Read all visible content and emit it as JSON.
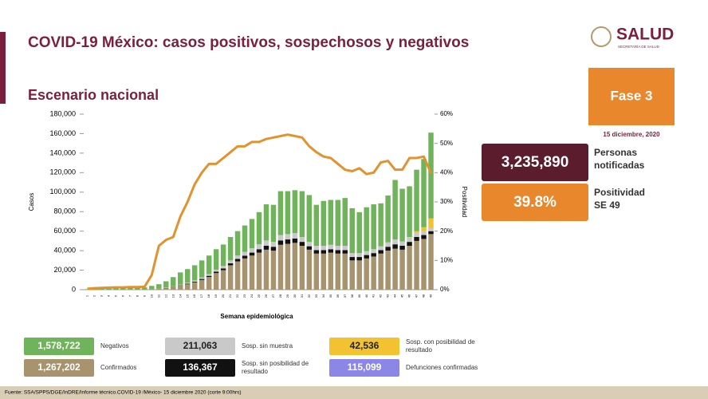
{
  "header": {
    "title": "COVID-19 México: casos positivos, sospechosos y negativos",
    "subtitle": "Escenario nacional",
    "logo": "SALUD",
    "logo_sub": "SECRETARÍA DE SALUD"
  },
  "panels": {
    "phase": "Fase 3",
    "date": "15 diciembre, 2020",
    "notified_value": "3,235,890",
    "notified_label": "Personas notificadas",
    "positivity_value": "39.8%",
    "positivity_label": "Positividad SE 49"
  },
  "deaths": {
    "total": "115,099",
    "name": "Defunciones confirmadas",
    "color": "#8c86e6"
  },
  "footer": "Fuente: SSA/SPPS/DGE/InDRE/Informe técnico.COVID-19 /México- 15 diciembre 2020 (corte 9:00hrs)",
  "chart_data": {
    "type": "bar",
    "y_label": "Casos",
    "y2_label": "Positividad",
    "x_label": "Semana epidemiológica",
    "categories": [
      "1",
      "2",
      "3",
      "4",
      "5",
      "6",
      "7",
      "8",
      "9",
      "10",
      "11",
      "12",
      "13",
      "14",
      "15",
      "16",
      "17",
      "18",
      "19",
      "20",
      "21",
      "22",
      "23",
      "24",
      "25",
      "26",
      "27",
      "28",
      "29",
      "30",
      "31",
      "32",
      "33",
      "34",
      "35",
      "36",
      "37",
      "38",
      "39",
      "40",
      "41",
      "42",
      "43",
      "44",
      "45",
      "46",
      "47",
      "48",
      "49"
    ],
    "ylim": [
      0,
      180000
    ],
    "yticks": [
      0,
      {
        "value": 20000,
        "label": "20,000"
      },
      {
        "value": 40000,
        "label": "40,000"
      },
      {
        "value": 60000,
        "label": "60,000"
      },
      {
        "value": 80000,
        "label": "80,000"
      },
      {
        "value": 100000,
        "label": "100,000"
      },
      {
        "value": 120000,
        "label": "120,000"
      },
      {
        "value": 140000,
        "label": "140,000"
      },
      {
        "value": 160000,
        "label": "160,000"
      },
      {
        "value": 180000,
        "label": "180,000"
      }
    ],
    "y2lim": [
      0,
      60
    ],
    "y2ticks": [
      {
        "value": 0,
        "label": "0%"
      },
      {
        "value": 10,
        "label": "10%"
      },
      {
        "value": 20,
        "label": "20%"
      },
      {
        "value": 30,
        "label": "30%"
      },
      {
        "value": 40,
        "label": "40%"
      },
      {
        "value": 50,
        "label": "50%"
      },
      {
        "value": 60,
        "label": "60%"
      }
    ],
    "series": [
      {
        "name": "Confirmados",
        "total": "1,267,202",
        "color": "#a8936f",
        "values": [
          0,
          0,
          0,
          0,
          0,
          0,
          0,
          0,
          100,
          300,
          800,
          1500,
          2500,
          4000,
          5500,
          7500,
          10000,
          13000,
          17000,
          20000,
          25000,
          29000,
          32000,
          35000,
          38000,
          41000,
          40000,
          46000,
          47000,
          48000,
          45000,
          41000,
          37000,
          37000,
          38000,
          37000,
          37000,
          30000,
          30000,
          32000,
          34000,
          37000,
          40000,
          42000,
          41000,
          45000,
          50000,
          52000,
          57000
        ]
      },
      {
        "name": "Sosp. sin posibilidad de resultado",
        "total": "136,367",
        "color": "#111111",
        "values": [
          0,
          0,
          0,
          0,
          0,
          0,
          0,
          0,
          0,
          0,
          100,
          200,
          300,
          400,
          600,
          800,
          1000,
          1200,
          1500,
          1800,
          2000,
          2500,
          2800,
          3000,
          3500,
          4000,
          4000,
          4500,
          4500,
          4500,
          4000,
          3500,
          3500,
          3500,
          3500,
          3500,
          3500,
          3500,
          3500,
          3500,
          3500,
          3500,
          4000,
          4500,
          4000,
          4000,
          4000,
          4000,
          3000
        ]
      },
      {
        "name": "Sosp. sin muestra",
        "total": "211,063",
        "color": "#c9c9c9",
        "values": [
          0,
          0,
          0,
          0,
          0,
          0,
          0,
          0,
          0,
          100,
          200,
          400,
          600,
          800,
          1000,
          1200,
          1500,
          1800,
          2000,
          2500,
          3000,
          3500,
          4000,
          4500,
          5000,
          5500,
          5000,
          5500,
          5500,
          5500,
          5000,
          4500,
          4500,
          4500,
          4500,
          4500,
          4500,
          4000,
          4000,
          4000,
          4000,
          4000,
          4500,
          5000,
          4500,
          5000,
          4000,
          4000,
          3000
        ]
      },
      {
        "name": "Sosp. con posibilidad de resultado",
        "total": "42,536",
        "color": "#f2c230",
        "values": [
          0,
          0,
          0,
          0,
          0,
          0,
          0,
          0,
          0,
          0,
          0,
          0,
          0,
          0,
          0,
          0,
          0,
          0,
          0,
          0,
          0,
          0,
          0,
          0,
          0,
          0,
          0,
          0,
          0,
          0,
          0,
          0,
          0,
          0,
          0,
          0,
          0,
          0,
          0,
          0,
          0,
          0,
          0,
          0,
          0,
          0,
          2000,
          4000,
          10000
        ]
      },
      {
        "name": "Negativos",
        "total": "1,578,722",
        "color": "#6fb35a",
        "values": [
          500,
          800,
          1000,
          1200,
          1500,
          1700,
          1800,
          1800,
          2200,
          3500,
          4500,
          6500,
          9500,
          12500,
          14000,
          15500,
          17500,
          19000,
          21000,
          22000,
          24000,
          25000,
          27000,
          30000,
          33000,
          37000,
          38000,
          45000,
          44000,
          44000,
          47000,
          48000,
          42000,
          46000,
          46000,
          47000,
          49000,
          46000,
          42000,
          45000,
          46000,
          44000,
          48000,
          61000,
          54000,
          52000,
          63000,
          70000,
          88000
        ]
      }
    ],
    "line": {
      "color": "#e2922e",
      "axis": "y2",
      "values": [
        0.3,
        0.5,
        0.6,
        0.7,
        0.8,
        0.8,
        0.9,
        0.9,
        1,
        5,
        15,
        17,
        18,
        25,
        30,
        36,
        40,
        43,
        43,
        45,
        47,
        49,
        49,
        50.5,
        50.5,
        51.5,
        52,
        52.5,
        53,
        52.5,
        52,
        49,
        47,
        45.5,
        45,
        43,
        41,
        40.5,
        41.5,
        39.5,
        40,
        43.5,
        44,
        41,
        41,
        45,
        45,
        45.5,
        39.8
      ]
    }
  }
}
